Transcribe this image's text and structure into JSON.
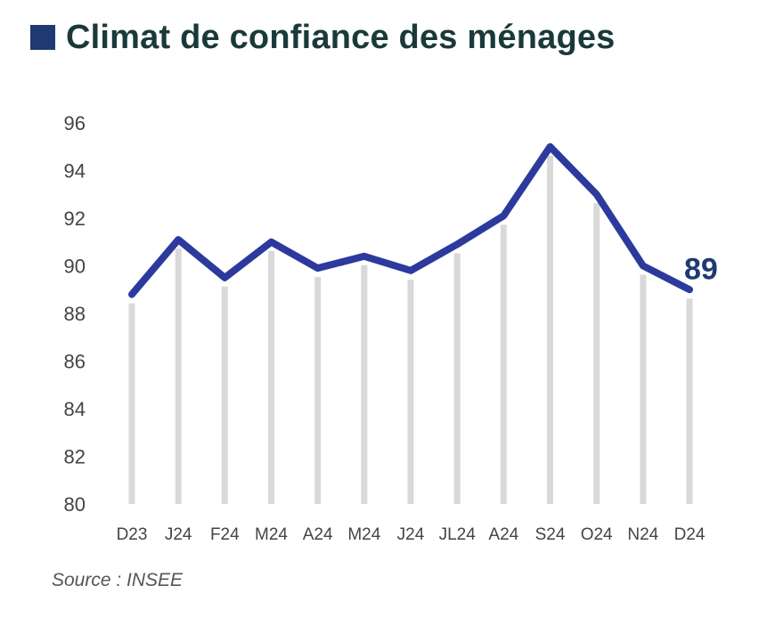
{
  "chart_data": {
    "type": "line",
    "title": "Climat de confiance des ménages",
    "xlabel": "",
    "ylabel": "",
    "categories": [
      "D23",
      "J24",
      "F24",
      "M24",
      "A24",
      "M24",
      "J24",
      "JL24",
      "A24",
      "S24",
      "O24",
      "N24",
      "D24"
    ],
    "series": [
      {
        "name": "",
        "values": [
          88.8,
          91.1,
          89.5,
          91.0,
          89.9,
          90.4,
          89.8,
          90.9,
          92.1,
          95.0,
          93.0,
          90.0,
          89.0
        ]
      }
    ],
    "ylim": [
      80,
      96
    ],
    "yticks": [
      80,
      82,
      84,
      86,
      88,
      90,
      92,
      94,
      96
    ],
    "grid": "vertical",
    "end_label": "89",
    "colors": {
      "line": "#2b3a9c",
      "grid": "#d9d9d9",
      "legend_square": "#1f3a73",
      "end_label": "#1f3a73"
    }
  },
  "source": "Source : INSEE"
}
